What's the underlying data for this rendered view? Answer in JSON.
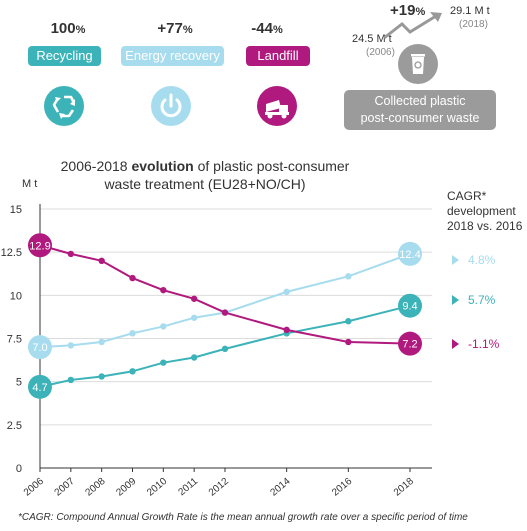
{
  "colors": {
    "recycling": "#3bb3b8",
    "energy": "#a6dcee",
    "landfill": "#b0197e",
    "collected": "#9b9b9b"
  },
  "header": {
    "cards": [
      {
        "pct_value": "100",
        "pct_sym": "%",
        "label": "Recycling",
        "icon": "recycle-icon"
      },
      {
        "pct_value": "+77",
        "pct_sym": "%",
        "label": "Energy recovery",
        "icon": "power-icon"
      },
      {
        "pct_value": "-44",
        "pct_sym": "%",
        "label": "Landfill",
        "icon": "dump-truck-icon"
      }
    ],
    "collected": {
      "growth_value": "+19",
      "growth_sym": "%",
      "start_value": "24.5 M t",
      "start_year": "(2006)",
      "end_value": "29.1 M t",
      "end_year": "(2018)",
      "label_line1": "Collected plastic",
      "label_line2": "post-consumer waste",
      "icon": "bin-icon"
    }
  },
  "chart_data": {
    "type": "line",
    "title_pre": "2006-2018 ",
    "title_bold": "evolution",
    "title_post": " of plastic post-consumer",
    "title_line2": "waste treatment (EU28+NO/CH)",
    "ylabel": "M t",
    "ylim": [
      0,
      15
    ],
    "yticks": [
      "0",
      "2.5",
      "5",
      "7.5",
      "10",
      "12.5",
      "15"
    ],
    "x": [
      2006,
      2007,
      2008,
      2009,
      2010,
      2011,
      2012,
      2014,
      2016,
      2018
    ],
    "x_tick_labels": [
      "2006",
      "2007",
      "2008",
      "2009",
      "2010",
      "2011",
      "2012",
      "2014",
      "2016",
      "2018"
    ],
    "series": [
      {
        "key": "energy",
        "values": [
          7.0,
          7.1,
          7.3,
          7.8,
          8.2,
          8.7,
          9.0,
          10.2,
          11.1,
          12.4
        ],
        "start_label": "7.0",
        "end_label": "12.4",
        "cagr": "4.8%"
      },
      {
        "key": "recycling",
        "values": [
          4.7,
          5.1,
          5.3,
          5.6,
          6.1,
          6.4,
          6.9,
          7.8,
          8.5,
          9.4
        ],
        "start_label": "4.7",
        "end_label": "9.4",
        "cagr": "5.7%"
      },
      {
        "key": "landfill",
        "values": [
          12.9,
          12.4,
          12.0,
          11.0,
          10.3,
          9.8,
          9.0,
          8.0,
          7.3,
          7.2
        ],
        "start_label": "12.9",
        "end_label": "7.2",
        "cagr": "-1.1%"
      }
    ],
    "cagr_heading": [
      "CAGR*",
      "development",
      "2018 vs. 2016"
    ]
  },
  "footnote": "*CAGR: Compound Annual Growth Rate is the mean annual growth rate over a specific period of time"
}
